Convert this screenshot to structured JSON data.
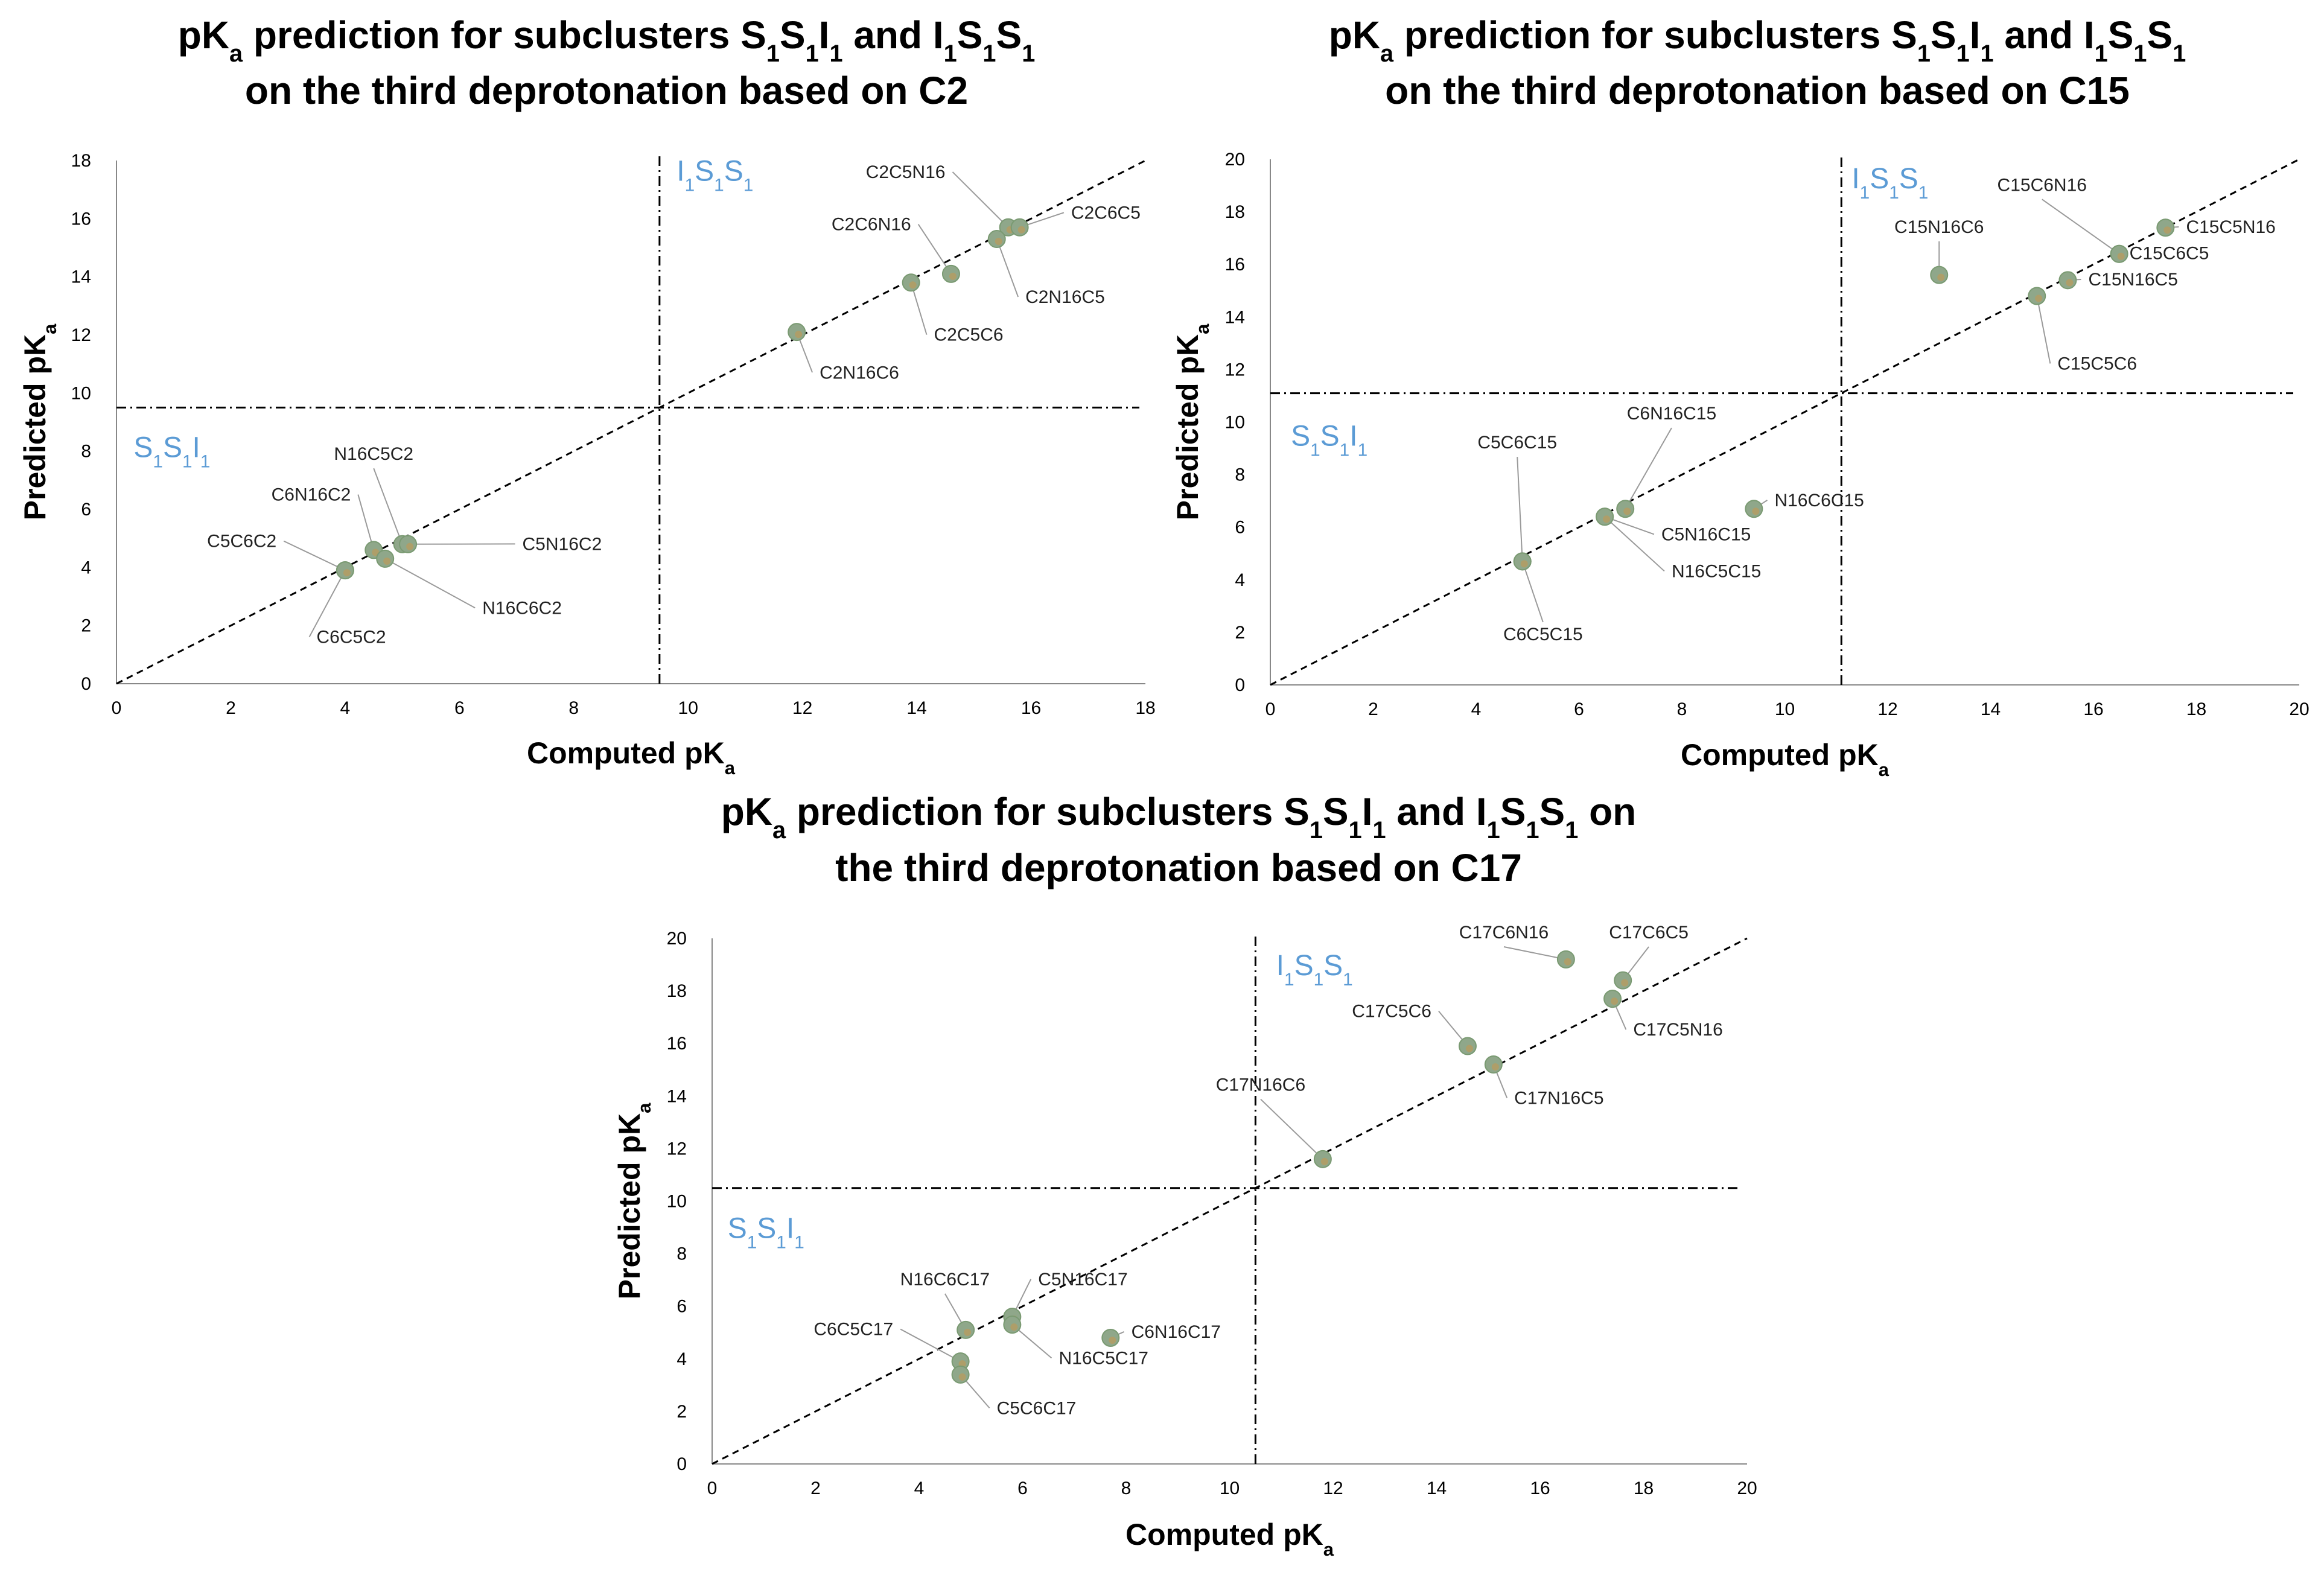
{
  "colors": {
    "point_fill": "#8fa78a",
    "point_edge": "#7a9a72",
    "accent_orange": "#e8902b",
    "quadrant_text": "#5b9bd5",
    "axis": "#000000"
  },
  "chart_data": [
    {
      "type": "scatter",
      "title": {
        "line1": [
          {
            "t": "pK"
          },
          {
            "t": "a",
            "sub": true
          },
          {
            "t": " prediction for subclusters S"
          },
          {
            "t": "1",
            "sub": true
          },
          {
            "t": "S"
          },
          {
            "t": "1",
            "sub": true
          },
          {
            "t": "I"
          },
          {
            "t": "1",
            "sub": true
          },
          {
            "t": " and I"
          },
          {
            "t": "1",
            "sub": true
          },
          {
            "t": "S"
          },
          {
            "t": "1",
            "sub": true
          },
          {
            "t": "S"
          },
          {
            "t": "1",
            "sub": true
          }
        ],
        "line2": [
          {
            "t": "on the third deprotonation based on C2"
          }
        ]
      },
      "xlabel": [
        {
          "t": "Computed pK"
        },
        {
          "t": "a",
          "sub": true
        }
      ],
      "ylabel": [
        {
          "t": "Predicted pK"
        },
        {
          "t": "a",
          "sub": true
        }
      ],
      "xlim": [
        0,
        18
      ],
      "ylim": [
        0,
        18
      ],
      "xticks": [
        "0",
        "2",
        "4",
        "6",
        "8",
        "10",
        "12",
        "14",
        "16",
        "18"
      ],
      "yticks": [
        "0",
        "2",
        "4",
        "6",
        "8",
        "10",
        "12",
        "14",
        "16",
        "18"
      ],
      "threshold_x": 9.5,
      "threshold_y": 9.5,
      "quadrant_labels": [
        {
          "name": "I1S1S1",
          "parts": [
            {
              "t": "I"
            },
            {
              "t": "1",
              "sub": true
            },
            {
              "t": "S"
            },
            {
              "t": "1",
              "sub": true
            },
            {
              "t": "S"
            },
            {
              "t": "1",
              "sub": true
            }
          ],
          "at": [
            9.8,
            17.3
          ]
        },
        {
          "name": "S1S1I1",
          "parts": [
            {
              "t": "S"
            },
            {
              "t": "1",
              "sub": true
            },
            {
              "t": "S"
            },
            {
              "t": "1",
              "sub": true
            },
            {
              "t": "I"
            },
            {
              "t": "1",
              "sub": true
            }
          ],
          "at": [
            0.3,
            7.8
          ]
        }
      ],
      "points": [
        {
          "label": "C2C5N16",
          "x": 15.6,
          "y": 15.7,
          "lx": 14.5,
          "ly": 17.4,
          "ha": "end"
        },
        {
          "label": "C2C6C5",
          "x": 15.8,
          "y": 15.7,
          "lx": 16.7,
          "ly": 16.0,
          "ha": "start"
        },
        {
          "label": "C2C6N16",
          "x": 14.6,
          "y": 14.1,
          "lx": 13.9,
          "ly": 15.6,
          "ha": "end"
        },
        {
          "label": "C2N16C5",
          "x": 15.4,
          "y": 15.3,
          "lx": 15.9,
          "ly": 13.1,
          "ha": "start"
        },
        {
          "label": "C2C5C6",
          "x": 13.9,
          "y": 13.8,
          "lx": 14.3,
          "ly": 11.8,
          "ha": "start"
        },
        {
          "label": "C2N16C6",
          "x": 11.9,
          "y": 12.1,
          "lx": 12.3,
          "ly": 10.5,
          "ha": "start"
        },
        {
          "label": "N16C5C2",
          "x": 5.0,
          "y": 4.8,
          "lx": 4.5,
          "ly": 7.7,
          "ha": "middle"
        },
        {
          "label": "C6N16C2",
          "x": 4.5,
          "y": 4.6,
          "lx": 4.1,
          "ly": 6.3,
          "ha": "end"
        },
        {
          "label": "C5C6C2",
          "x": 4.0,
          "y": 3.9,
          "lx": 2.8,
          "ly": 4.7,
          "ha": "end"
        },
        {
          "label": "C5N16C2",
          "x": 5.1,
          "y": 4.8,
          "lx": 7.1,
          "ly": 4.6,
          "ha": "start"
        },
        {
          "label": "N16C6C2",
          "x": 4.7,
          "y": 4.3,
          "lx": 6.4,
          "ly": 2.4,
          "ha": "start"
        },
        {
          "label": "C6C5C2",
          "x": 4.0,
          "y": 3.9,
          "lx": 3.5,
          "ly": 1.4,
          "ha": "start"
        }
      ]
    },
    {
      "type": "scatter",
      "title": {
        "line1": [
          {
            "t": "pK"
          },
          {
            "t": "a",
            "sub": true
          },
          {
            "t": " prediction for subclusters S"
          },
          {
            "t": "1",
            "sub": true
          },
          {
            "t": "S"
          },
          {
            "t": "1",
            "sub": true
          },
          {
            "t": "I"
          },
          {
            "t": "1",
            "sub": true
          },
          {
            "t": " and I"
          },
          {
            "t": "1",
            "sub": true
          },
          {
            "t": "S"
          },
          {
            "t": "1",
            "sub": true
          },
          {
            "t": "S"
          },
          {
            "t": "1",
            "sub": true
          }
        ],
        "line2": [
          {
            "t": "on the third deprotonation based on C15"
          }
        ]
      },
      "xlabel": [
        {
          "t": "Computed pK"
        },
        {
          "t": "a",
          "sub": true
        }
      ],
      "ylabel": [
        {
          "t": "Predicted pK"
        },
        {
          "t": "a",
          "sub": true
        }
      ],
      "xlim": [
        0,
        20
      ],
      "ylim": [
        0,
        20
      ],
      "xticks": [
        "0",
        "2",
        "4",
        "6",
        "8",
        "10",
        "12",
        "14",
        "16",
        "18",
        "20"
      ],
      "yticks": [
        "0",
        "2",
        "4",
        "6",
        "8",
        "10",
        "12",
        "14",
        "16",
        "18",
        "20"
      ],
      "threshold_x": 11.1,
      "threshold_y": 11.1,
      "quadrant_labels": [
        {
          "name": "I1S1S1",
          "parts": [
            {
              "t": "I"
            },
            {
              "t": "1",
              "sub": true
            },
            {
              "t": "S"
            },
            {
              "t": "1",
              "sub": true
            },
            {
              "t": "S"
            },
            {
              "t": "1",
              "sub": true
            }
          ],
          "at": [
            11.3,
            18.9
          ]
        },
        {
          "name": "S1S1I1",
          "parts": [
            {
              "t": "S"
            },
            {
              "t": "1",
              "sub": true
            },
            {
              "t": "S"
            },
            {
              "t": "1",
              "sub": true
            },
            {
              "t": "I"
            },
            {
              "t": "1",
              "sub": true
            }
          ],
          "at": [
            0.4,
            9.1
          ]
        }
      ],
      "points": [
        {
          "label": "C15N16C6",
          "x": 13.0,
          "y": 15.6,
          "lx": 13.0,
          "ly": 17.2,
          "ha": "middle"
        },
        {
          "label": "C15C6N16",
          "x": 16.5,
          "y": 16.4,
          "lx": 15.0,
          "ly": 18.8,
          "ha": "middle"
        },
        {
          "label": "C15C5N16",
          "x": 17.4,
          "y": 17.4,
          "lx": 17.8,
          "ly": 17.2,
          "ha": "start"
        },
        {
          "label": "C15C6C5",
          "x": 16.5,
          "y": 16.4,
          "lx": 16.7,
          "ly": 16.2,
          "ha": "start"
        },
        {
          "label": "C15N16C5",
          "x": 15.5,
          "y": 15.4,
          "lx": 15.9,
          "ly": 15.2,
          "ha": "start"
        },
        {
          "label": "C15C5C6",
          "x": 14.9,
          "y": 14.8,
          "lx": 15.3,
          "ly": 12.0,
          "ha": "start"
        },
        {
          "label": "C6N16C15",
          "x": 6.9,
          "y": 6.7,
          "lx": 7.8,
          "ly": 10.1,
          "ha": "middle"
        },
        {
          "label": "C5C6C15",
          "x": 4.9,
          "y": 4.7,
          "lx": 4.8,
          "ly": 9.0,
          "ha": "middle"
        },
        {
          "label": "C5N16C15",
          "x": 6.5,
          "y": 6.4,
          "lx": 7.6,
          "ly": 5.5,
          "ha": "start"
        },
        {
          "label": "N16C5C15",
          "x": 6.5,
          "y": 6.4,
          "lx": 7.8,
          "ly": 4.1,
          "ha": "start"
        },
        {
          "label": "N16C6C15",
          "x": 9.4,
          "y": 6.7,
          "lx": 9.8,
          "ly": 6.8,
          "ha": "start"
        },
        {
          "label": "C6C5C15",
          "x": 4.9,
          "y": 4.7,
          "lx": 5.3,
          "ly": 1.7,
          "ha": "middle"
        }
      ]
    },
    {
      "type": "scatter",
      "title": {
        "line1": [
          {
            "t": "pK"
          },
          {
            "t": "a",
            "sub": true
          },
          {
            "t": " prediction for subclusters S"
          },
          {
            "t": "1",
            "sub": true
          },
          {
            "t": "S"
          },
          {
            "t": "1",
            "sub": true
          },
          {
            "t": "I"
          },
          {
            "t": "1",
            "sub": true
          },
          {
            "t": " and I"
          },
          {
            "t": "1",
            "sub": true
          },
          {
            "t": "S"
          },
          {
            "t": "1",
            "sub": true
          },
          {
            "t": "S"
          },
          {
            "t": "1",
            "sub": true
          },
          {
            "t": " on"
          }
        ],
        "line2": [
          {
            "t": "the third deprotonation based on C17"
          }
        ]
      },
      "xlabel": [
        {
          "t": "Computed pK"
        },
        {
          "t": "a",
          "sub": true
        }
      ],
      "ylabel": [
        {
          "t": "Predicted pK"
        },
        {
          "t": "a",
          "sub": true
        }
      ],
      "xlim": [
        0,
        20
      ],
      "ylim": [
        0,
        20
      ],
      "xticks": [
        "0",
        "2",
        "4",
        "6",
        "8",
        "10",
        "12",
        "14",
        "16",
        "18",
        "20"
      ],
      "yticks": [
        "0",
        "2",
        "4",
        "6",
        "8",
        "10",
        "12",
        "14",
        "16",
        "18",
        "20"
      ],
      "threshold_x": 10.5,
      "threshold_y": 10.5,
      "quadrant_labels": [
        {
          "name": "I1S1S1",
          "parts": [
            {
              "t": "I"
            },
            {
              "t": "1",
              "sub": true
            },
            {
              "t": "S"
            },
            {
              "t": "1",
              "sub": true
            },
            {
              "t": "S"
            },
            {
              "t": "1",
              "sub": true
            }
          ],
          "at": [
            10.9,
            18.6
          ]
        },
        {
          "name": "S1S1I1",
          "parts": [
            {
              "t": "S"
            },
            {
              "t": "1",
              "sub": true
            },
            {
              "t": "S"
            },
            {
              "t": "1",
              "sub": true
            },
            {
              "t": "I"
            },
            {
              "t": "1",
              "sub": true
            }
          ],
          "at": [
            0.3,
            8.6
          ]
        }
      ],
      "points": [
        {
          "label": "C17C6N16",
          "x": 16.5,
          "y": 19.2,
          "lx": 15.3,
          "ly": 20.0,
          "ha": "middle"
        },
        {
          "label": "C17C6C5",
          "x": 17.6,
          "y": 18.4,
          "lx": 18.1,
          "ly": 20.0,
          "ha": "middle"
        },
        {
          "label": "C17C5N16",
          "x": 17.4,
          "y": 17.7,
          "lx": 17.8,
          "ly": 16.3,
          "ha": "start"
        },
        {
          "label": "C17C5C6",
          "x": 14.6,
          "y": 15.9,
          "lx": 13.9,
          "ly": 17.0,
          "ha": "end"
        },
        {
          "label": "C17N16C5",
          "x": 15.1,
          "y": 15.2,
          "lx": 15.5,
          "ly": 13.7,
          "ha": "start"
        },
        {
          "label": "C17N16C6",
          "x": 11.8,
          "y": 11.6,
          "lx": 10.6,
          "ly": 14.2,
          "ha": "middle"
        },
        {
          "label": "N16C6C17",
          "x": 4.9,
          "y": 5.1,
          "lx": 4.5,
          "ly": 6.8,
          "ha": "middle"
        },
        {
          "label": "C5N16C17",
          "x": 5.8,
          "y": 5.6,
          "lx": 6.3,
          "ly": 6.8,
          "ha": "start"
        },
        {
          "label": "C6C5C17",
          "x": 4.8,
          "y": 3.9,
          "lx": 3.5,
          "ly": 4.9,
          "ha": "end"
        },
        {
          "label": "N16C5C17",
          "x": 5.8,
          "y": 5.3,
          "lx": 6.7,
          "ly": 3.8,
          "ha": "start"
        },
        {
          "label": "C6N16C17",
          "x": 7.7,
          "y": 4.8,
          "lx": 8.1,
          "ly": 4.8,
          "ha": "start"
        },
        {
          "label": "C5C6C17",
          "x": 4.8,
          "y": 3.4,
          "lx": 5.5,
          "ly": 1.9,
          "ha": "start"
        }
      ]
    }
  ]
}
